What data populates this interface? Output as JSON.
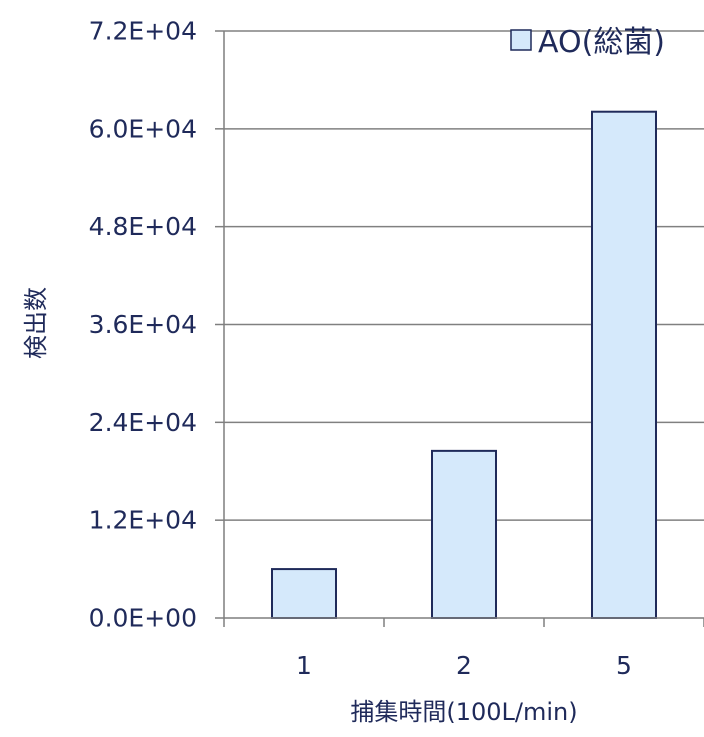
{
  "chart_data": {
    "type": "bar",
    "categories": [
      "1",
      "2",
      "5"
    ],
    "series": [
      {
        "name": "AO(総菌)",
        "values": [
          6000,
          20500,
          62100
        ]
      }
    ],
    "ylim": [
      0,
      72000
    ],
    "yticks": [
      0,
      12000,
      24000,
      36000,
      48000,
      60000,
      72000
    ],
    "ytick_labels": [
      "0.0E+00",
      "1.2E+04",
      "2.4E+04",
      "3.6E+04",
      "4.8E+04",
      "6.0E+04",
      "7.2E+04"
    ],
    "xlabel": "捕集時間(100L/min)",
    "ylabel": "検出数",
    "grid": true,
    "legend_position": "top-right",
    "colors": {
      "bar_fill": "#D5E9FB",
      "bar_stroke": "#1F2A5A",
      "axis": "#7F7F7F",
      "grid": "#808080",
      "text": "#1F2A5A"
    }
  }
}
